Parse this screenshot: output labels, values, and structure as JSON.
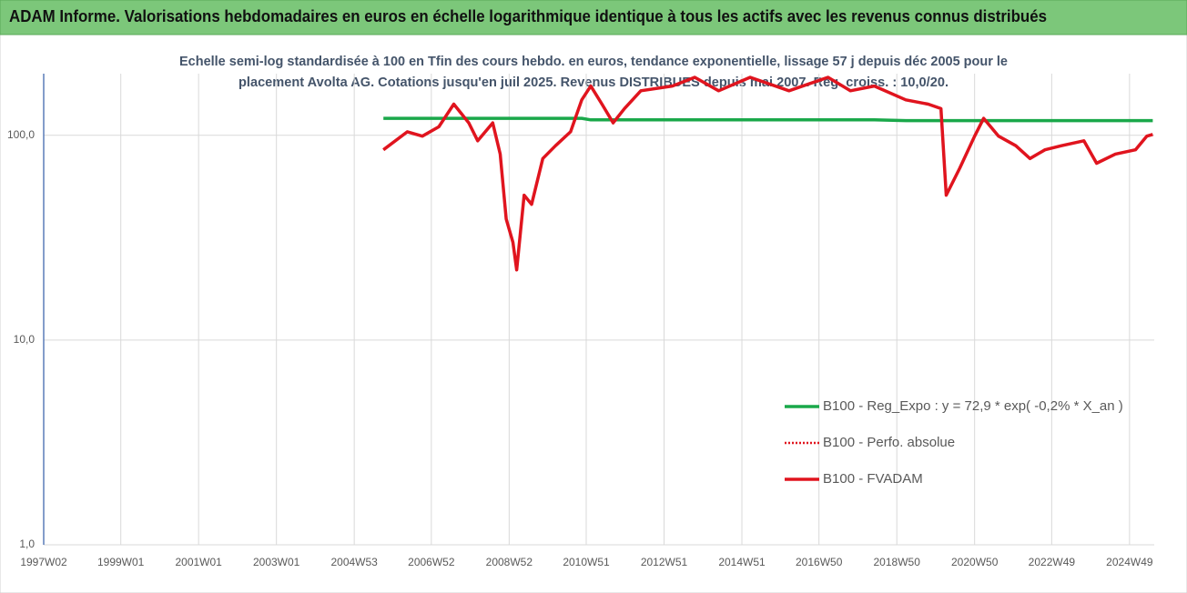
{
  "chart_data": {
    "type": "line",
    "title": "ADAM Informe. Valorisations hebdomadaires en euros en échelle logarithmique identique à tous les actifs avec les revenus connus distribués",
    "subtitle": [
      "Echelle semi-log standardisée à 100 en Tfin des cours hebdo. en euros, tendance exponentielle, lissage 57 j depuis déc 2005 pour le",
      "placement Avolta AG. Cotations jusqu'en juil 2025. Revenus DISTRIBUES depuis mai 2007. Reg. croiss. : 10,0/20."
    ],
    "log_scale": true,
    "grid": true,
    "legend_position": "right",
    "xlim": [
      "1997W02",
      "2025W30"
    ],
    "xticks": [
      "1997W02",
      "1999W01",
      "2001W01",
      "2003W01",
      "2004W53",
      "2006W52",
      "2008W52",
      "2010W51",
      "2012W51",
      "2014W51",
      "2016W50",
      "2018W50",
      "2020W50",
      "2022W49",
      "2024W49"
    ],
    "ylim": [
      1,
      200
    ],
    "yticks": [
      {
        "value": 1,
        "label": "1,0"
      },
      {
        "value": 10,
        "label": "10,0"
      },
      {
        "value": 100,
        "label": "100,0"
      }
    ],
    "x": [
      "2005W40",
      "2006W20",
      "2006W40",
      "2007W10",
      "2007W30",
      "2007W50",
      "2008W10",
      "2008W30",
      "2008W40",
      "2008W48",
      "2009W05",
      "2009W10",
      "2009W20",
      "2009W30",
      "2009W45",
      "2010W10",
      "2010W30",
      "2010W45",
      "2011W05",
      "2011W20",
      "2011W35",
      "2011W50",
      "2012W20",
      "2013W10",
      "2013W40",
      "2014W20",
      "2015W10",
      "2016W10",
      "2017W10",
      "2017W40",
      "2018W20",
      "2019W10",
      "2019W40",
      "2020W05",
      "2020W12",
      "2020W30",
      "2020W50",
      "2021W10",
      "2021W30",
      "2022W01",
      "2022W20",
      "2022W40",
      "2023W10",
      "2023W40",
      "2024W05",
      "2024W30",
      "2025W05",
      "2025W20",
      "2025W28"
    ],
    "series": [
      {
        "name": "B100 - Reg_Expo : y = 72,9 * exp( -0,2% *  X_an )",
        "color": "#1aa84a",
        "style": "solid",
        "values": [
          121,
          121,
          121,
          121,
          121,
          121,
          121,
          121,
          121,
          121,
          121,
          121,
          121,
          121,
          121,
          121,
          121,
          121,
          119,
          119,
          119,
          119,
          119,
          119,
          119,
          119,
          119,
          119,
          119,
          119,
          119,
          118,
          118,
          118,
          118,
          118,
          118,
          118,
          118,
          118,
          118,
          118,
          118,
          118,
          118,
          118,
          118,
          118,
          118
        ]
      },
      {
        "name": "B100 - Perfo. absolue",
        "color": "#e0141e",
        "style": "dotted",
        "values": [
          85,
          104,
          99,
          110,
          142,
          115,
          94,
          115,
          81,
          39,
          30,
          22,
          51,
          46,
          77,
          89,
          104,
          149,
          174,
          142,
          115,
          135,
          165,
          174,
          192,
          165,
          192,
          165,
          192,
          165,
          174,
          149,
          142,
          135,
          51,
          69,
          99,
          121,
          99,
          89,
          77,
          85,
          89,
          94,
          73,
          81,
          85,
          99,
          101
        ]
      },
      {
        "name": "B100 - FVADAM",
        "color": "#e0141e",
        "style": "solid",
        "values": [
          85,
          104,
          99,
          110,
          142,
          115,
          94,
          115,
          81,
          39,
          30,
          22,
          51,
          46,
          77,
          89,
          104,
          149,
          174,
          142,
          115,
          135,
          165,
          174,
          192,
          165,
          192,
          165,
          192,
          165,
          174,
          149,
          142,
          135,
          51,
          69,
          99,
          121,
          99,
          89,
          77,
          85,
          89,
          94,
          73,
          81,
          85,
          99,
          101
        ]
      }
    ]
  }
}
